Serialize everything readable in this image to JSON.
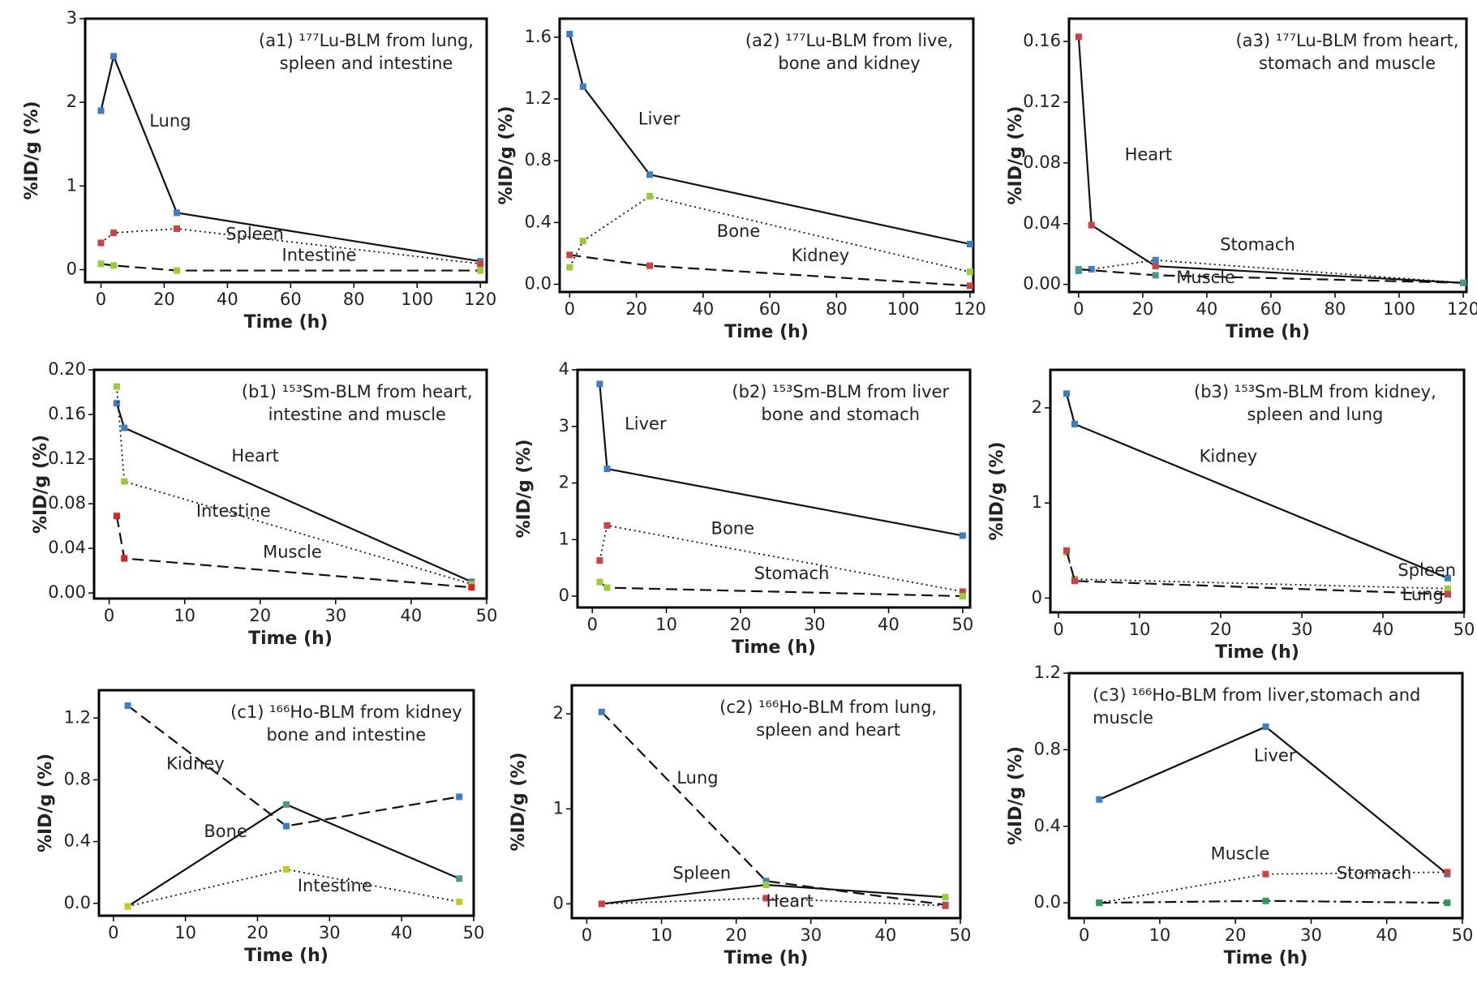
{
  "chart_data": [
    {
      "type": "line",
      "title": [
        "(a1) ¹⁷⁷Lu-BLM from lung,",
        "spleen and intestine"
      ],
      "xlabel": "Time (h)",
      "ylabel": "%ID/g (%)",
      "xlim": [
        -5,
        122
      ],
      "xticks": [
        0,
        20,
        40,
        60,
        80,
        100,
        120
      ],
      "ylim": [
        -0.15,
        3
      ],
      "yticks": [
        0,
        1,
        2,
        3
      ],
      "series": [
        {
          "name": "Lung",
          "color": "#3a7fc4",
          "dash": "solid",
          "x": [
            0,
            4,
            24,
            120
          ],
          "values": [
            1.9,
            2.55,
            0.68,
            0.1
          ]
        },
        {
          "name": "Spleen",
          "color": "#d04040",
          "dash": "dotted",
          "x": [
            0,
            4,
            24,
            120
          ],
          "values": [
            0.32,
            0.44,
            0.49,
            0.07
          ]
        },
        {
          "name": "Intestine",
          "color": "#9acd32",
          "dash": "dashed",
          "x": [
            0,
            4,
            24,
            120
          ],
          "values": [
            0.07,
            0.05,
            -0.01,
            -0.01
          ]
        }
      ]
    },
    {
      "type": "line",
      "title": [
        "(a2) ¹⁷⁷Lu-BLM from live,",
        "bone and kidney"
      ],
      "xlabel": "Time (h)",
      "ylabel": "%ID/g (%)",
      "xlim": [
        -3,
        121
      ],
      "xticks": [
        0,
        20,
        40,
        60,
        80,
        100,
        120
      ],
      "ylim": [
        -0.05,
        1.72
      ],
      "yticks": [
        {
          "value": 0,
          "label": "0.0"
        },
        0.4,
        0.8,
        1.2,
        1.6
      ],
      "series": [
        {
          "name": "Liver",
          "color": "#3a7fc4",
          "dash": "solid",
          "x": [
            0,
            4,
            24,
            120
          ],
          "values": [
            1.62,
            1.28,
            0.71,
            0.26
          ]
        },
        {
          "name": "Bone",
          "color": "#9acd32",
          "dash": "dotted",
          "x": [
            0,
            4,
            24,
            120
          ],
          "values": [
            0.11,
            0.28,
            0.57,
            0.08
          ]
        },
        {
          "name": "Kidney",
          "color": "#d04040",
          "dash": "dashed",
          "x": [
            0,
            24,
            120
          ],
          "values": [
            0.19,
            0.12,
            -0.01
          ]
        }
      ]
    },
    {
      "type": "line",
      "title": [
        "(a3) ¹⁷⁷Lu-BLM from heart,",
        "stomach and muscle"
      ],
      "xlabel": "Time (h)",
      "ylabel": "%ID/g (%)",
      "xlim": [
        -3,
        121
      ],
      "xticks": [
        0,
        20,
        40,
        60,
        80,
        100,
        120
      ],
      "ylim": [
        -0.005,
        0.175
      ],
      "yticks": [
        {
          "value": 0,
          "label": "0.00"
        },
        0.04,
        0.08,
        0.12,
        0.16
      ],
      "series": [
        {
          "name": "Heart",
          "color": "#d04040",
          "dash": "solid",
          "x": [
            0,
            4,
            24,
            120
          ],
          "values": [
            0.163,
            0.039,
            0.012,
            0.001
          ]
        },
        {
          "name": "Stomach",
          "color": "#3a7fc4",
          "dash": "dotted",
          "x": [
            0,
            4,
            24,
            120
          ],
          "values": [
            0.009,
            0.01,
            0.016,
            0.001
          ]
        },
        {
          "name": "Muscle",
          "color": "#4a9a8a",
          "dash": "dashed",
          "x": [
            0,
            24,
            120
          ],
          "values": [
            0.01,
            0.006,
            0.001
          ]
        }
      ]
    },
    {
      "type": "line",
      "title": [
        "(b1) ¹⁵³Sm-BLM from heart,",
        "intestine and muscle"
      ],
      "xlabel": "Time (h)",
      "ylabel": "%ID/g (%)",
      "xlim": [
        -2,
        50
      ],
      "xticks": [
        0,
        10,
        20,
        30,
        40,
        50
      ],
      "ylim": [
        -0.005,
        0.2
      ],
      "yticks": [
        {
          "value": 0,
          "label": "0.00"
        },
        0.04,
        0.08,
        0.12,
        0.16,
        {
          "value": 0.2,
          "label": "0.20"
        }
      ],
      "series": [
        {
          "name": "Heart",
          "color": "#3a7fc4",
          "dash": "solid",
          "x": [
            1,
            2,
            48
          ],
          "values": [
            0.17,
            0.148,
            0.01
          ]
        },
        {
          "name": "Intestine",
          "color": "#9acd32",
          "dash": "dotted",
          "x": [
            1,
            2,
            48
          ],
          "values": [
            0.185,
            0.1,
            0.008
          ]
        },
        {
          "name": "Muscle",
          "color": "#e02020",
          "dash": "dashed",
          "x": [
            1,
            2,
            48
          ],
          "values": [
            0.069,
            0.031,
            0.005
          ]
        }
      ]
    },
    {
      "type": "line",
      "title": [
        "(b2) ¹⁵³Sm-BLM from liver",
        "bone and stomach"
      ],
      "xlabel": "Time (h)",
      "ylabel": "%ID/g (%)",
      "xlim": [
        -2,
        51
      ],
      "xticks": [
        0,
        10,
        20,
        30,
        40,
        50
      ],
      "ylim": [
        -0.2,
        4
      ],
      "yticks": [
        0,
        1,
        2,
        3,
        4
      ],
      "series": [
        {
          "name": "Liver",
          "color": "#3a7fc4",
          "dash": "solid",
          "x": [
            1,
            2,
            50
          ],
          "values": [
            3.75,
            2.25,
            1.07
          ]
        },
        {
          "name": "Bone",
          "color": "#d04040",
          "dash": "dotted",
          "x": [
            1,
            2,
            50
          ],
          "values": [
            0.63,
            1.25,
            0.08
          ]
        },
        {
          "name": "Stomach",
          "color": "#9acd32",
          "dash": "dashed",
          "x": [
            1,
            2,
            50
          ],
          "values": [
            0.25,
            0.15,
            0.0
          ]
        }
      ]
    },
    {
      "type": "line",
      "title": [
        "(b3) ¹⁵³Sm-BLM from kidney,",
        "spleen and lung"
      ],
      "xlabel": "Time (h)",
      "ylabel": "%ID/g (%)",
      "xlim": [
        -1,
        50
      ],
      "xticks": [
        0,
        10,
        20,
        30,
        40,
        50
      ],
      "ylim": [
        -0.15,
        2.4
      ],
      "yticks": [
        0,
        1,
        2
      ],
      "series": [
        {
          "name": "Kidney",
          "color": "#3a7fc4",
          "dash": "solid",
          "x": [
            1,
            2,
            48
          ],
          "values": [
            2.15,
            1.83,
            0.21
          ]
        },
        {
          "name": "Spleen",
          "color": "#9acd32",
          "dash": "dotted",
          "x": [
            1,
            2,
            48
          ],
          "values": [
            0.48,
            0.2,
            0.1
          ]
        },
        {
          "name": "Lung",
          "color": "#d04040",
          "dash": "dashed",
          "x": [
            1,
            2,
            48
          ],
          "values": [
            0.5,
            0.18,
            0.04
          ]
        }
      ]
    },
    {
      "type": "line",
      "title": [
        "(c1) ¹⁶⁶Ho-BLM from kidney",
        "bone and intestine"
      ],
      "xlabel": "Time (h)",
      "ylabel": "%ID/g (%)",
      "xlim": [
        -2,
        50
      ],
      "xticks": [
        0,
        10,
        20,
        30,
        40,
        50
      ],
      "ylim": [
        -0.08,
        1.38
      ],
      "yticks": [
        {
          "value": 0,
          "label": "0.0"
        },
        0.4,
        0.8,
        1.2
      ],
      "series": [
        {
          "name": "Kidney",
          "color": "#3a7fc4",
          "dash": "dashed",
          "x": [
            2,
            24,
            48
          ],
          "values": [
            1.28,
            0.5,
            0.69
          ]
        },
        {
          "name": "Bone",
          "color": "#4a9a8a",
          "dash": "solid",
          "x": [
            2,
            24,
            48
          ],
          "values": [
            -0.02,
            0.64,
            0.16
          ]
        },
        {
          "name": "Intestine",
          "color": "#c8c820",
          "dash": "dotted",
          "x": [
            2,
            24,
            48
          ],
          "values": [
            -0.02,
            0.22,
            0.01
          ]
        }
      ]
    },
    {
      "type": "line",
      "title": [
        "(c2) ¹⁶⁶Ho-BLM from lung,",
        "spleen and heart"
      ],
      "xlabel": "Time (h)",
      "ylabel": "%ID/g (%)",
      "xlim": [
        -2,
        50
      ],
      "xticks": [
        0,
        10,
        20,
        30,
        40,
        50
      ],
      "ylim": [
        -0.15,
        2.3
      ],
      "yticks": [
        0,
        1,
        2
      ],
      "series": [
        {
          "name": "Lung",
          "color": "#3a7fc4",
          "dash": "dashed",
          "x": [
            2,
            24,
            48
          ],
          "values": [
            2.02,
            0.24,
            -0.01
          ]
        },
        {
          "name": "Spleen",
          "color": "#9acd32",
          "dash": "solid",
          "x": [
            2,
            24,
            48
          ],
          "values": [
            0,
            0.2,
            0.07
          ]
        },
        {
          "name": "Heart",
          "color": "#d04040",
          "dash": "dotted",
          "x": [
            2,
            24,
            48
          ],
          "values": [
            0,
            0.06,
            -0.02
          ]
        }
      ]
    },
    {
      "type": "line",
      "title": [
        "(c3) ¹⁶⁶Ho-BLM from liver,stomach and",
        "muscle"
      ],
      "xlabel": "Time (h)",
      "ylabel": "%ID/g (%)",
      "xlim": [
        -2,
        50
      ],
      "xticks": [
        0,
        10,
        20,
        30,
        40,
        50
      ],
      "ylim": [
        -0.08,
        1.2
      ],
      "yticks": [
        {
          "value": 0,
          "label": "0.0"
        },
        0.4,
        0.8,
        1.2
      ],
      "series": [
        {
          "name": "Liver",
          "color": "#3a7fc4",
          "dash": "solid",
          "x": [
            2,
            24,
            48
          ],
          "values": [
            0.54,
            0.92,
            0.15
          ]
        },
        {
          "name": "Muscle",
          "color": "#d04040",
          "dash": "dotted",
          "x": [
            2,
            24,
            48
          ],
          "values": [
            0,
            0.15,
            0.16
          ]
        },
        {
          "name": "Stomach",
          "color": "#2a9a5a",
          "dash": "dashdot",
          "x": [
            2,
            24,
            48
          ],
          "values": [
            0,
            0.01,
            0
          ]
        }
      ]
    }
  ]
}
